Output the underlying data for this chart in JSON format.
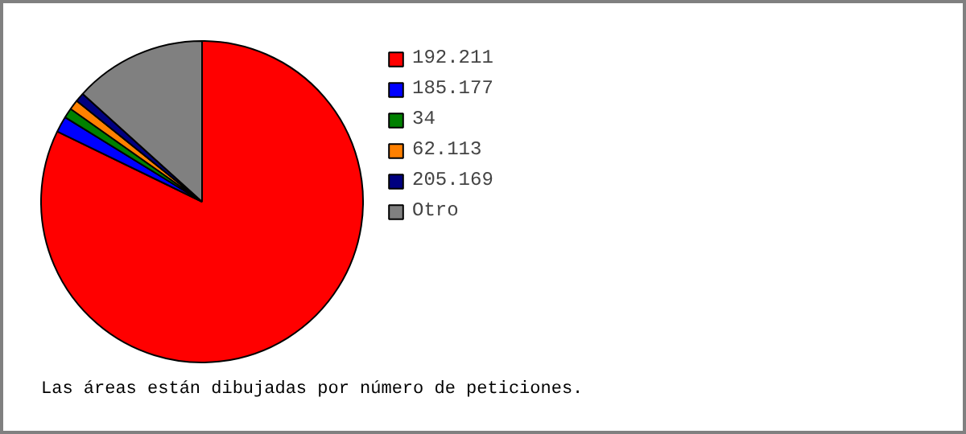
{
  "chart_data": {
    "type": "pie",
    "categories": [
      "192.211",
      "185.177",
      "34",
      "62.113",
      "205.169",
      "Otro"
    ],
    "values": [
      82.2,
      1.6,
      1.0,
      1.0,
      0.9,
      13.3
    ],
    "colors": [
      "#ff0000",
      "#0000ff",
      "#008000",
      "#ff8000",
      "#000080",
      "#808080"
    ],
    "legend": "right",
    "annotations": [
      "Las áreas están dibujadas por número de peticiones."
    ]
  }
}
